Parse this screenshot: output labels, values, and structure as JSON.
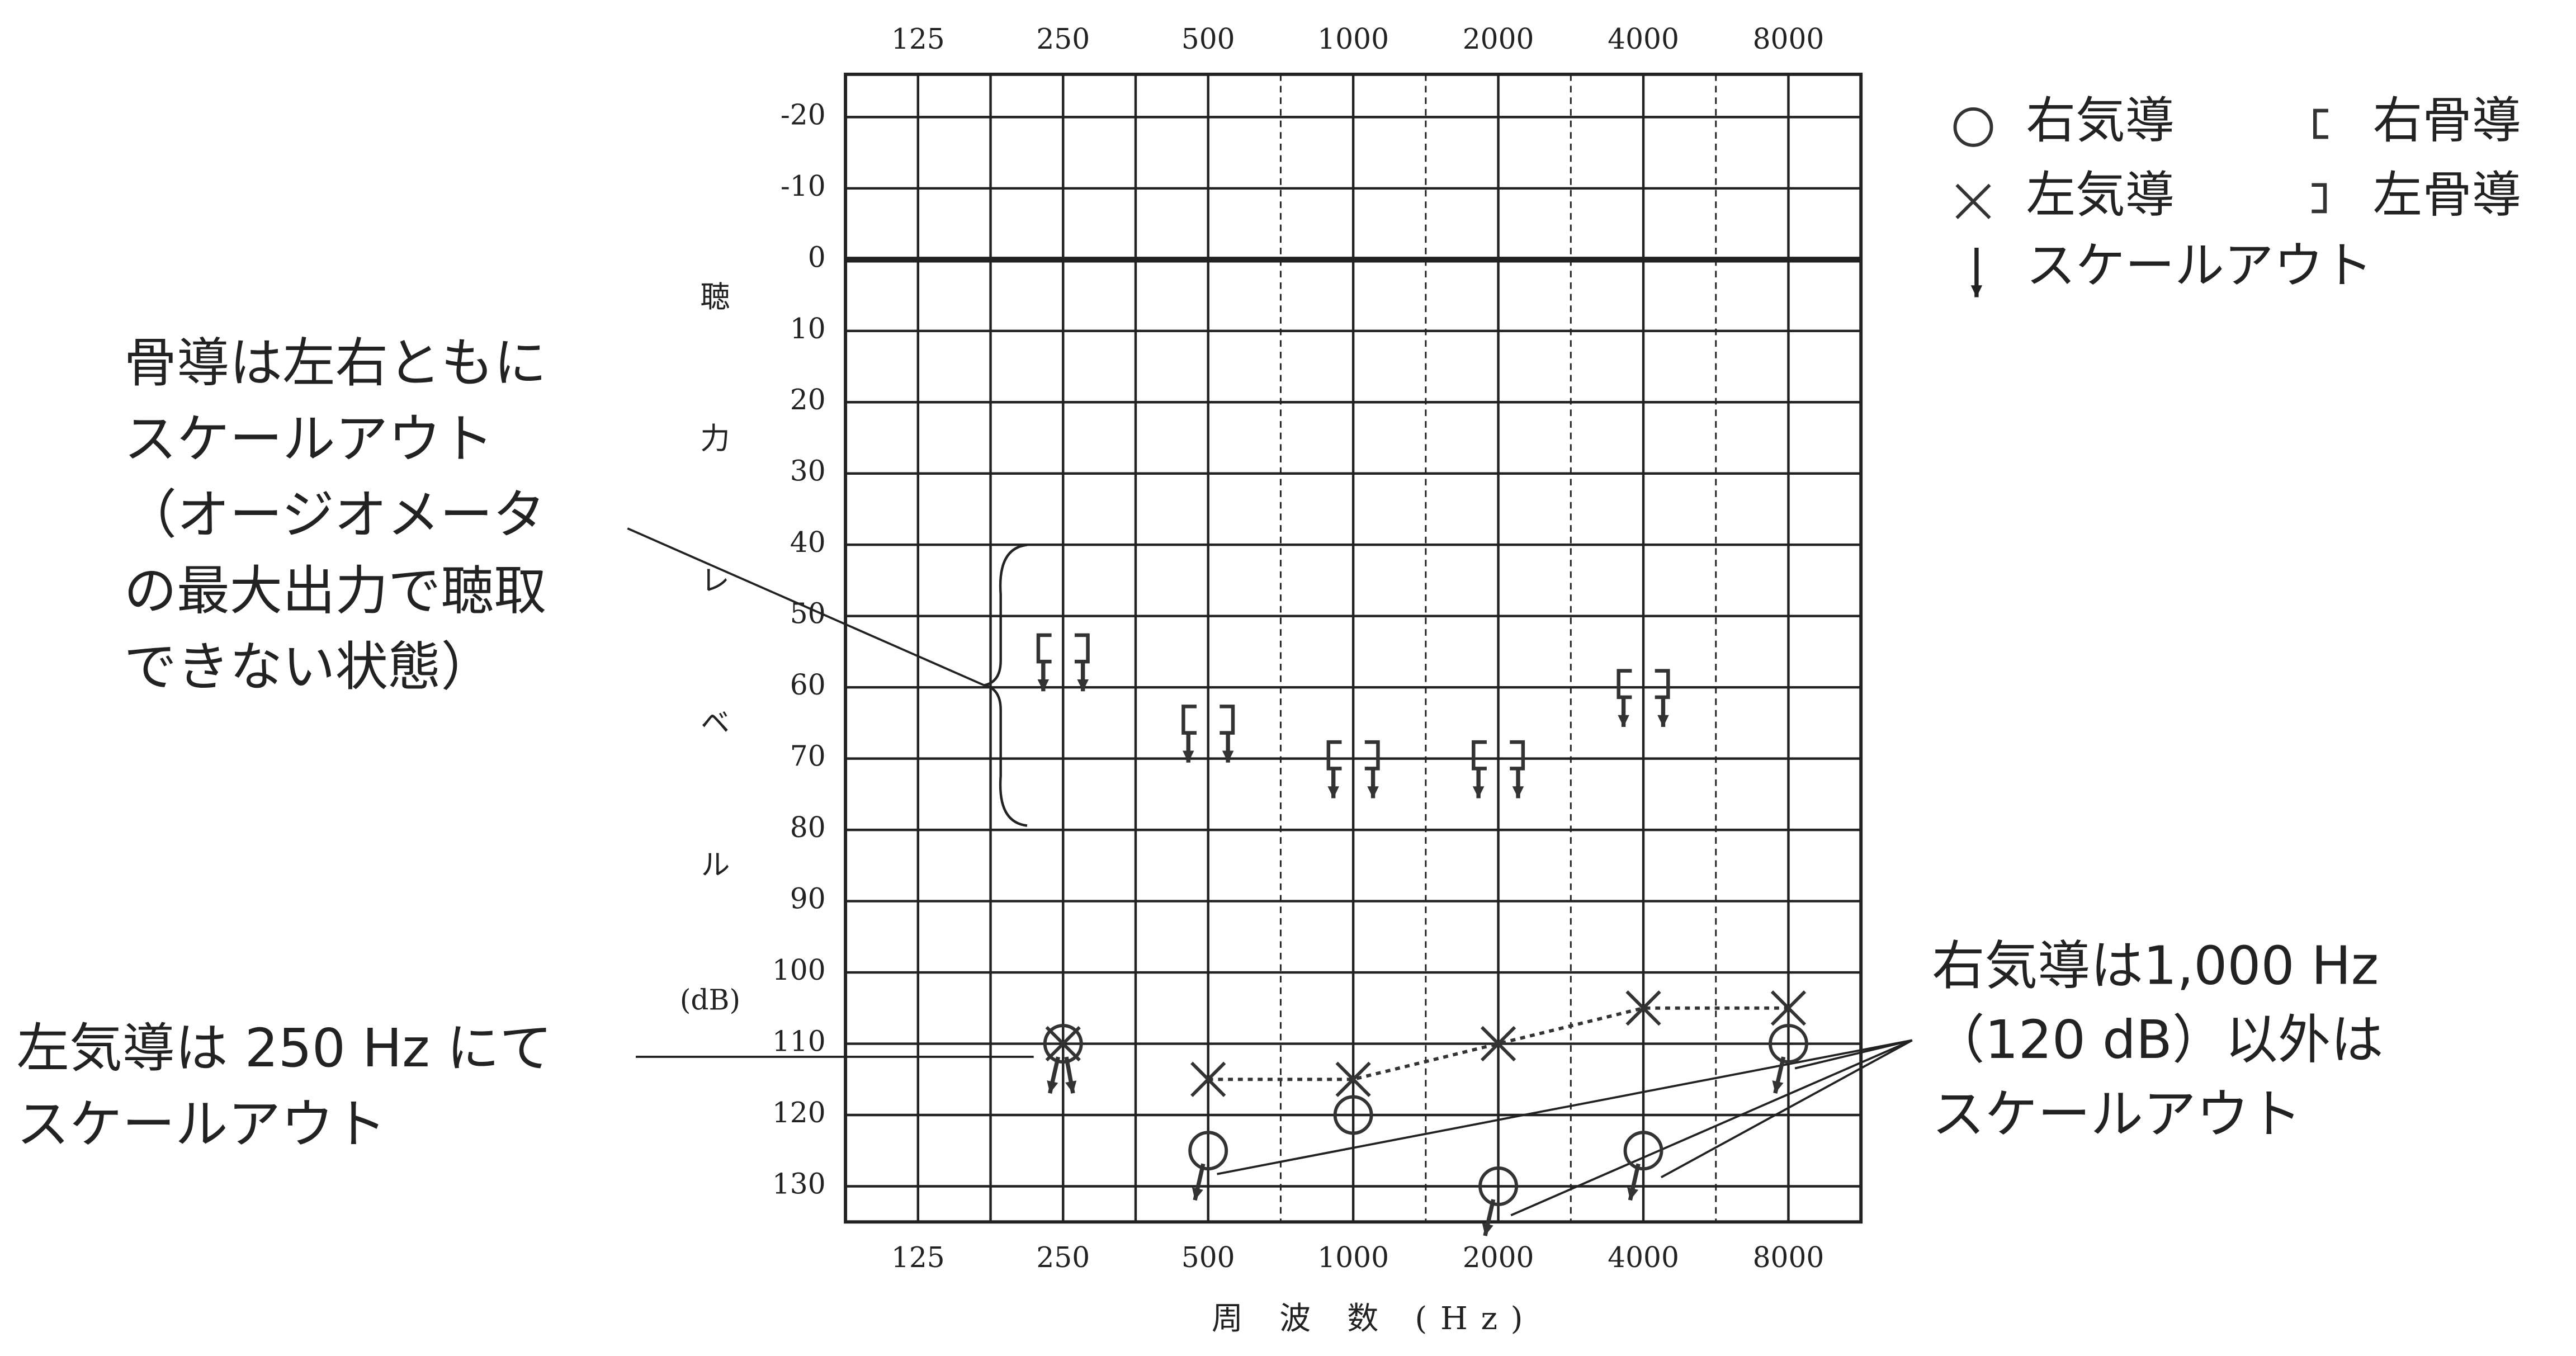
{
  "chart_data": {
    "type": "audiogram",
    "categories": [
      "125",
      "250",
      "500",
      "1000",
      "2000",
      "4000",
      "8000"
    ],
    "ylim": [
      -26,
      135
    ],
    "yticks": [
      -20,
      -10,
      0,
      10,
      20,
      30,
      40,
      50,
      60,
      70,
      80,
      90,
      100,
      110,
      120,
      130
    ],
    "y_label": "聴力レベル",
    "y_unit": "(dB)",
    "x_label": "周 波 数 (Hz)",
    "scale_out_label": "スケールアウト",
    "series": [
      {
        "name": "右気導",
        "marker": "circle",
        "color": "#333333",
        "line": false,
        "values": [
          null,
          110,
          125,
          120,
          130,
          125,
          110
        ],
        "scale_out": [
          false,
          true,
          true,
          false,
          true,
          true,
          true
        ]
      },
      {
        "name": "左気導",
        "marker": "x",
        "color": "#333333",
        "line": true,
        "values": [
          null,
          110,
          115,
          115,
          110,
          105,
          105
        ],
        "scale_out": [
          false,
          true,
          false,
          false,
          false,
          false,
          false
        ]
      },
      {
        "name": "右骨導",
        "marker": "bracket-left",
        "color": "#333333",
        "line": false,
        "values": [
          null,
          55,
          65,
          70,
          70,
          60,
          null
        ],
        "scale_out": [
          false,
          true,
          true,
          true,
          true,
          true,
          false
        ]
      },
      {
        "name": "左骨導",
        "marker": "bracket-right",
        "color": "#333333",
        "line": false,
        "values": [
          null,
          55,
          65,
          70,
          70,
          60,
          null
        ],
        "scale_out": [
          false,
          true,
          true,
          true,
          true,
          true,
          false
        ]
      }
    ],
    "annotations": [
      {
        "lines": [
          "骨導は左右ともに",
          "スケールアウト",
          "（オージオメータ",
          "の最大出力で聴取",
          "できない状態）"
        ]
      },
      {
        "lines": [
          "左気導は 250 Hz にて",
          "スケールアウト"
        ]
      },
      {
        "lines": [
          "右気導は1,000 Hz",
          "（120 dB）以外は",
          "スケールアウト"
        ]
      }
    ]
  }
}
